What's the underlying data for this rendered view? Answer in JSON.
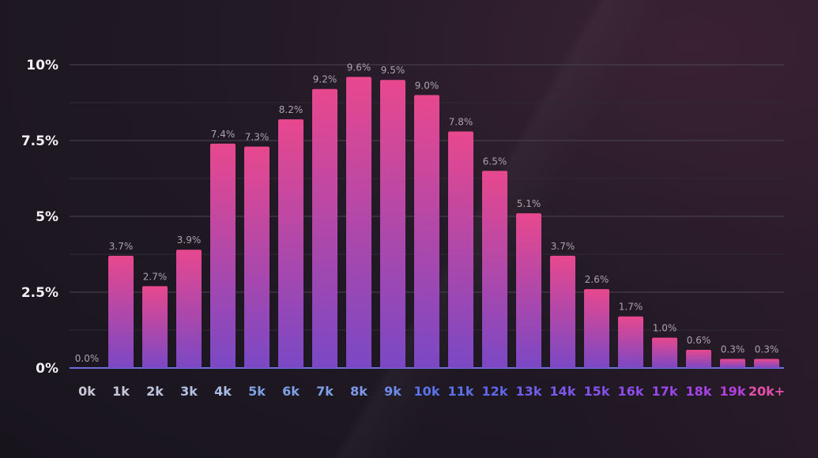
{
  "chart_data": {
    "type": "bar",
    "title": "",
    "xlabel": "",
    "ylabel": "",
    "ylim": [
      0,
      10
    ],
    "grid": true,
    "yticks": [
      {
        "value": 0,
        "label": "0%"
      },
      {
        "value": 2.5,
        "label": "2.5%"
      },
      {
        "value": 5,
        "label": "5%"
      },
      {
        "value": 7.5,
        "label": "7.5%"
      },
      {
        "value": 10,
        "label": "10%"
      }
    ],
    "categories": [
      "0k",
      "1k",
      "2k",
      "3k",
      "4k",
      "5k",
      "6k",
      "7k",
      "8k",
      "9k",
      "10k",
      "11k",
      "12k",
      "13k",
      "14k",
      "15k",
      "16k",
      "17k",
      "18k",
      "19k",
      "20k+"
    ],
    "values": [
      0.0,
      3.7,
      2.7,
      3.9,
      7.4,
      7.3,
      8.2,
      9.2,
      9.6,
      9.5,
      9.0,
      7.8,
      6.5,
      5.1,
      3.7,
      2.6,
      1.7,
      1.0,
      0.6,
      0.3,
      0.3
    ],
    "data_labels": [
      "0.0%",
      "3.7%",
      "2.7%",
      "3.9%",
      "7.4%",
      "7.3%",
      "8.2%",
      "9.2%",
      "9.6%",
      "9.5%",
      "9.0%",
      "7.8%",
      "6.5%",
      "5.1%",
      "3.7%",
      "2.6%",
      "1.7%",
      "1.0%",
      "0.6%",
      "0.3%",
      "0.3%"
    ],
    "category_colors": [
      "#c9c6d6",
      "#c6c6dc",
      "#bcc3de",
      "#b3c0e2",
      "#a8bce4",
      "#7f9fe4",
      "#7da0e6",
      "#7d9fe6",
      "#7c98e8",
      "#6c8ae8",
      "#5b72ea",
      "#5d6fe8",
      "#5f66e8",
      "#6e5ee8",
      "#7b58ea",
      "#8352ea",
      "#8c4cea",
      "#9848e8",
      "#a444e4",
      "#b240de",
      "#e04fa8"
    ],
    "bar_gradient": {
      "top": "#e8488e",
      "bottom": "#7a48c4"
    },
    "colors": {
      "grid": "#4a4550",
      "tick_text": "#f2f0f4",
      "data_label": "#a9a3ae",
      "baseline": "#6c6fd8"
    }
  }
}
